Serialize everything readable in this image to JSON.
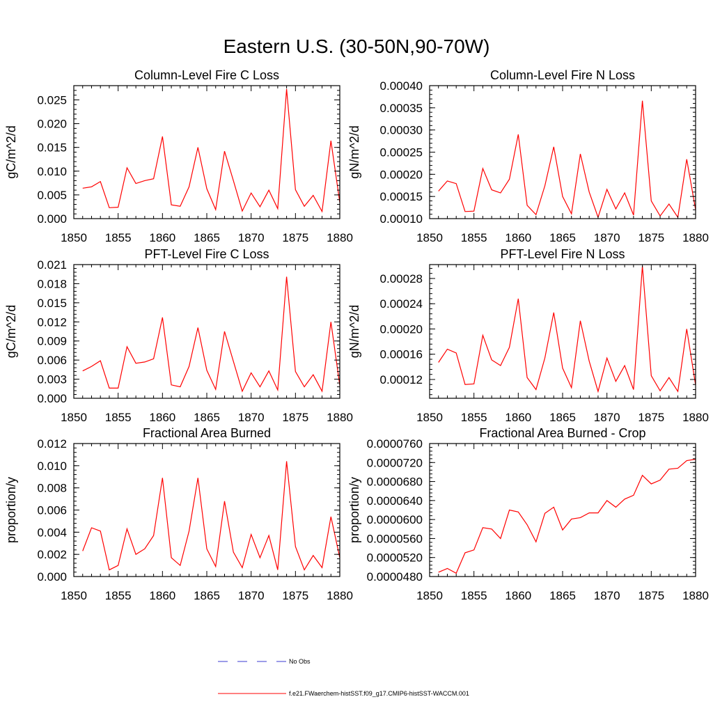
{
  "figure": {
    "title": "Eastern U.S. (30-50N,90-70W)"
  },
  "legend": {
    "entries": [
      {
        "label": "No Obs",
        "color": "#3a3ad0",
        "dash": true
      },
      {
        "label": "f.e21.FWaerchem-histSST.f09_g17.CMIP6-histSST-WACCM.001",
        "color": "#ff0000",
        "dash": false
      }
    ]
  },
  "chart_data": [
    {
      "type": "line",
      "title": "Column-Level Fire C Loss",
      "ylabel": "gC/m^2/d",
      "xlim": [
        1850,
        1880
      ],
      "ylim": [
        0,
        0.028
      ],
      "xticks": [
        "1850",
        "1855",
        "1860",
        "1865",
        "1870",
        "1875",
        "1880"
      ],
      "yticks": [
        "0.000",
        "0.005",
        "0.010",
        "0.015",
        "0.020",
        "0.025"
      ],
      "x": [
        1851,
        1852,
        1853,
        1854,
        1855,
        1856,
        1857,
        1858,
        1859,
        1860,
        1861,
        1862,
        1863,
        1864,
        1865,
        1866,
        1867,
        1868,
        1869,
        1870,
        1871,
        1872,
        1873,
        1874,
        1875,
        1876,
        1877,
        1878,
        1879,
        1880
      ],
      "series": [
        {
          "color": "#ff0000",
          "values": [
            0.0064,
            0.0067,
            0.0078,
            0.0023,
            0.0024,
            0.0107,
            0.0074,
            0.008,
            0.0084,
            0.0173,
            0.0029,
            0.0026,
            0.0067,
            0.015,
            0.0063,
            0.0019,
            0.0142,
            0.008,
            0.0016,
            0.0054,
            0.0025,
            0.006,
            0.0021,
            0.0273,
            0.0061,
            0.0026,
            0.0049,
            0.0015,
            0.0164,
            0.0034
          ]
        }
      ]
    },
    {
      "type": "line",
      "title": "Column-Level Fire N Loss",
      "ylabel": "gN/m^2/d",
      "xlim": [
        1850,
        1880
      ],
      "ylim": [
        0.0001,
        0.0004
      ],
      "xticks": [
        "1850",
        "1855",
        "1860",
        "1865",
        "1870",
        "1875",
        "1880"
      ],
      "yticks": [
        "0.00010",
        "0.00015",
        "0.00020",
        "0.00025",
        "0.00030",
        "0.00035",
        "0.00040"
      ],
      "x": [
        1851,
        1852,
        1853,
        1854,
        1855,
        1856,
        1857,
        1858,
        1859,
        1860,
        1861,
        1862,
        1863,
        1864,
        1865,
        1866,
        1867,
        1868,
        1869,
        1870,
        1871,
        1872,
        1873,
        1874,
        1875,
        1876,
        1877,
        1878,
        1879,
        1880
      ],
      "series": [
        {
          "color": "#ff0000",
          "values": [
            0.000162,
            0.000185,
            0.000179,
            0.000116,
            0.000117,
            0.000213,
            0.000165,
            0.000158,
            0.000189,
            0.00029,
            0.00013,
            0.000109,
            0.000174,
            0.000262,
            0.00015,
            0.000111,
            0.000246,
            0.00016,
            0.000103,
            0.000166,
            0.000122,
            0.000158,
            0.000108,
            0.000366,
            0.00014,
            0.000106,
            0.000133,
            0.000103,
            0.000234,
            0.00012
          ]
        }
      ]
    },
    {
      "type": "line",
      "title": "PFT-Level Fire C Loss",
      "ylabel": "gC/m^2/d",
      "xlim": [
        1850,
        1880
      ],
      "ylim": [
        0,
        0.021
      ],
      "xticks": [
        "1850",
        "1855",
        "1860",
        "1865",
        "1870",
        "1875",
        "1880"
      ],
      "yticks": [
        "0.000",
        "0.003",
        "0.006",
        "0.009",
        "0.012",
        "0.015",
        "0.018",
        "0.021"
      ],
      "x": [
        1851,
        1852,
        1853,
        1854,
        1855,
        1856,
        1857,
        1858,
        1859,
        1860,
        1861,
        1862,
        1863,
        1864,
        1865,
        1866,
        1867,
        1868,
        1869,
        1870,
        1871,
        1872,
        1873,
        1874,
        1875,
        1876,
        1877,
        1878,
        1879,
        1880
      ],
      "series": [
        {
          "color": "#ff0000",
          "values": [
            0.0043,
            0.005,
            0.0059,
            0.0016,
            0.0016,
            0.0081,
            0.0055,
            0.0057,
            0.0062,
            0.0127,
            0.0021,
            0.0018,
            0.005,
            0.0111,
            0.0044,
            0.0014,
            0.0105,
            0.0058,
            0.0011,
            0.004,
            0.0018,
            0.0043,
            0.0013,
            0.0191,
            0.0042,
            0.0018,
            0.0037,
            0.0011,
            0.012,
            0.002
          ]
        }
      ]
    },
    {
      "type": "line",
      "title": "PFT-Level Fire N Loss",
      "ylabel": "gN/m^2/d",
      "xlim": [
        1850,
        1880
      ],
      "ylim": [
        9.02e-05,
        0.000302
      ],
      "xticks": [
        "1850",
        "1855",
        "1860",
        "1865",
        "1870",
        "1875",
        "1880"
      ],
      "yticks": [
        "0.00012",
        "0.00016",
        "0.00020",
        "0.00024",
        "0.00028"
      ],
      "ytick_values": [
        0.00012,
        0.00016,
        0.0002,
        0.00024,
        0.00028
      ],
      "x": [
        1851,
        1852,
        1853,
        1854,
        1855,
        1856,
        1857,
        1858,
        1859,
        1860,
        1861,
        1862,
        1863,
        1864,
        1865,
        1866,
        1867,
        1868,
        1869,
        1870,
        1871,
        1872,
        1873,
        1874,
        1875,
        1876,
        1877,
        1878,
        1879,
        1880
      ],
      "series": [
        {
          "color": "#ff0000",
          "values": [
            0.000147,
            0.000168,
            0.000162,
            0.000112,
            0.000113,
            0.00019,
            0.000151,
            0.000142,
            0.000171,
            0.000248,
            0.000123,
            0.000104,
            0.000154,
            0.000226,
            0.000138,
            0.000107,
            0.000213,
            0.000149,
            0.000101,
            0.000154,
            0.000117,
            0.000142,
            0.000104,
            0.0003,
            0.000126,
            0.000102,
            0.000123,
            0.000101,
            0.0002,
            0.000111
          ]
        }
      ]
    },
    {
      "type": "line",
      "title": "Fractional Area Burned",
      "ylabel": "proportion/y",
      "xlim": [
        1850,
        1880
      ],
      "ylim": [
        0,
        0.012
      ],
      "xticks": [
        "1850",
        "1855",
        "1860",
        "1865",
        "1870",
        "1875",
        "1880"
      ],
      "yticks": [
        "0.000",
        "0.002",
        "0.004",
        "0.006",
        "0.008",
        "0.010",
        "0.012"
      ],
      "x": [
        1851,
        1852,
        1853,
        1854,
        1855,
        1856,
        1857,
        1858,
        1859,
        1860,
        1861,
        1862,
        1863,
        1864,
        1865,
        1866,
        1867,
        1868,
        1869,
        1870,
        1871,
        1872,
        1873,
        1874,
        1875,
        1876,
        1877,
        1878,
        1879,
        1880
      ],
      "series": [
        {
          "color": "#ff0000",
          "values": [
            0.0023,
            0.0044,
            0.0041,
            0.0006,
            0.001,
            0.0043,
            0.002,
            0.0025,
            0.0037,
            0.0089,
            0.0017,
            0.001,
            0.0041,
            0.0089,
            0.0025,
            0.0009,
            0.0068,
            0.0022,
            0.0008,
            0.0038,
            0.0017,
            0.0037,
            0.0006,
            0.0104,
            0.0027,
            0.0006,
            0.0019,
            0.0008,
            0.0054,
            0.0017
          ]
        }
      ]
    },
    {
      "type": "line",
      "title": "Fractional Area Burned - Crop",
      "ylabel": "proportion/y",
      "xlim": [
        1850,
        1880
      ],
      "ylim": [
        4.8e-05,
        7.6e-05
      ],
      "xticks": [
        "1850",
        "1855",
        "1860",
        "1865",
        "1870",
        "1875",
        "1880"
      ],
      "yticks": [
        "0.0000480",
        "0.0000520",
        "0.0000560",
        "0.0000600",
        "0.0000640",
        "0.0000680",
        "0.0000720",
        "0.0000760"
      ],
      "x": [
        1851,
        1852,
        1853,
        1854,
        1855,
        1856,
        1857,
        1858,
        1859,
        1860,
        1861,
        1862,
        1863,
        1864,
        1865,
        1866,
        1867,
        1868,
        1869,
        1870,
        1871,
        1872,
        1873,
        1874,
        1875,
        1876,
        1877,
        1878,
        1879,
        1880
      ],
      "series": [
        {
          "color": "#ff0000",
          "values": [
            4.89e-05,
            4.97e-05,
            4.87e-05,
            5.3e-05,
            5.36e-05,
            5.83e-05,
            5.8e-05,
            5.6e-05,
            6.2e-05,
            6.16e-05,
            5.89e-05,
            5.53e-05,
            6.13e-05,
            6.26e-05,
            5.78e-05,
            6.01e-05,
            6.04e-05,
            6.14e-05,
            6.14e-05,
            6.4e-05,
            6.26e-05,
            6.43e-05,
            6.51e-05,
            6.93e-05,
            6.75e-05,
            6.83e-05,
            7.06e-05,
            7.08e-05,
            7.24e-05,
            7.27e-05
          ]
        }
      ]
    }
  ]
}
